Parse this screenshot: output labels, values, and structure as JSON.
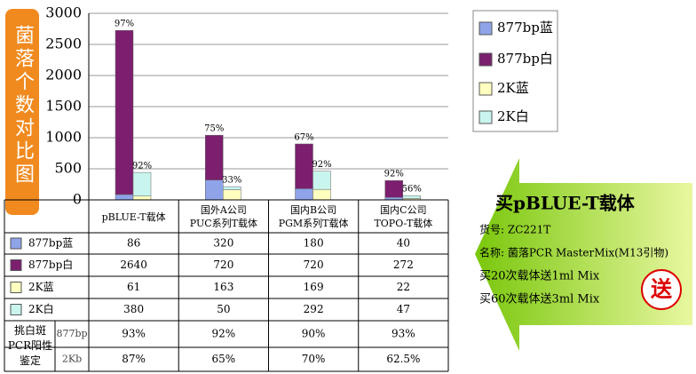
{
  "chart_data": {
    "type": "stacked_bar",
    "y_axis_label": "菌落个数对比图",
    "categories": [
      "pBLUE-T载体",
      "国外A公司\nPUC系列T载体",
      "国内B公司\nPGM系列T载体",
      "国内C公司\nTOPO-T载体"
    ],
    "series": [
      {
        "name": "877bp蓝",
        "color": "#8fa3e8",
        "stack": 0,
        "values": [
          86,
          320,
          180,
          40
        ]
      },
      {
        "name": "877bp白",
        "color": "#7b1f6e",
        "stack": 0,
        "values": [
          2640,
          720,
          720,
          272
        ]
      },
      {
        "name": "2K蓝",
        "color": "#ffffc0",
        "stack": 1,
        "values": [
          61,
          163,
          169,
          22
        ]
      },
      {
        "name": "2K白",
        "color": "#c8f5ee",
        "stack": 1,
        "values": [
          380,
          50,
          292,
          47
        ]
      }
    ],
    "stack_labels": [
      [
        "97%",
        "75%",
        "67%",
        "92%"
      ],
      [
        "92%",
        "33%",
        "92%",
        "56%"
      ]
    ],
    "ylim": [
      0,
      3000
    ],
    "yticks": [
      0,
      500,
      1000,
      1500,
      2000,
      2500,
      3000
    ],
    "grid": true
  },
  "table": {
    "pcr_title": "挑白斑PCR阳性鉴定",
    "pcr_rows": [
      {
        "name": "877bp",
        "values": [
          "93%",
          "92%",
          "90%",
          "93%"
        ]
      },
      {
        "name": "2Kb",
        "values": [
          "87%",
          "65%",
          "70%",
          "62.5%"
        ]
      }
    ]
  },
  "promo": {
    "title": "买pBLUE-T载体",
    "code": "货号: ZC221T",
    "product": "名称: 菌落PCR MasterMix(M13引物)",
    "offers": [
      "买20次载体送1ml Mix",
      "买60次载体送3ml Mix"
    ],
    "badge": "送"
  }
}
